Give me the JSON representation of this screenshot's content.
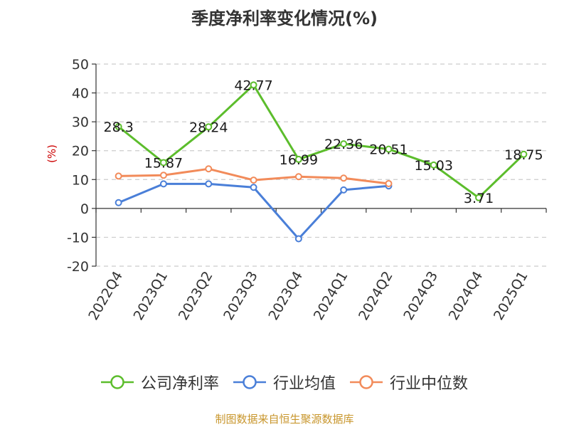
{
  "chart_data": {
    "type": "line",
    "title": "季度净利率变化情况(%)",
    "ylabel": "(%)",
    "xlabel": "",
    "categories": [
      "2022Q4",
      "2023Q1",
      "2023Q2",
      "2023Q3",
      "2023Q4",
      "2024Q1",
      "2024Q2",
      "2024Q3",
      "2024Q4",
      "2025Q1"
    ],
    "ylim": [
      -20,
      50
    ],
    "yticks": [
      -20,
      -10,
      0,
      10,
      20,
      30,
      40,
      50
    ],
    "grid": true,
    "legend_position": "bottom",
    "series": [
      {
        "name": "公司净利率",
        "color": "#5cbd2c",
        "values": [
          28.3,
          15.87,
          28.24,
          42.77,
          16.99,
          22.36,
          20.51,
          15.03,
          3.71,
          18.75
        ],
        "labels": [
          "28.3",
          "15.87",
          "28.24",
          "42.77",
          "16.99",
          "22.36",
          "20.51",
          "15.03",
          "3.71",
          "18.75"
        ],
        "show_labels": true
      },
      {
        "name": "行业均值",
        "color": "#4a7fd8",
        "values": [
          2.0,
          8.5,
          8.5,
          7.3,
          -10.5,
          6.4,
          7.8,
          null,
          null,
          null
        ],
        "show_labels": false
      },
      {
        "name": "行业中位数",
        "color": "#f28b5a",
        "values": [
          11.2,
          11.5,
          13.7,
          9.8,
          11.0,
          10.5,
          8.6,
          null,
          null,
          null
        ],
        "show_labels": false
      }
    ]
  },
  "footer": {
    "source": "制图数据来自恒生聚源数据库"
  }
}
